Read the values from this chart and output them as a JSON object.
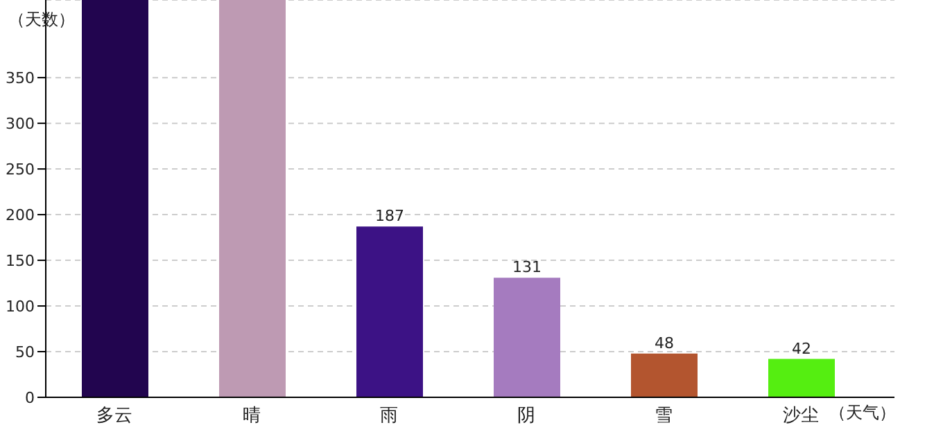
{
  "chart_data": {
    "type": "bar",
    "xlabel": "（天气）",
    "ylabel": "（天数）",
    "categories": [
      "多云",
      "晴",
      "雨",
      "阴",
      "雪",
      "沙尘"
    ],
    "values": [
      435,
      435,
      187,
      131,
      48,
      42
    ],
    "colors": [
      "#22054f",
      "#be9ab3",
      "#3c1285",
      "#a57bbf",
      "#b3552f",
      "#55ee11"
    ],
    "value_labels": [
      null,
      null,
      "187",
      "131",
      "48",
      "42"
    ],
    "ylim": [
      0,
      435
    ],
    "yticks": [
      0,
      50,
      100,
      150,
      200,
      250,
      300,
      350
    ],
    "grid": "y",
    "legend": false
  }
}
